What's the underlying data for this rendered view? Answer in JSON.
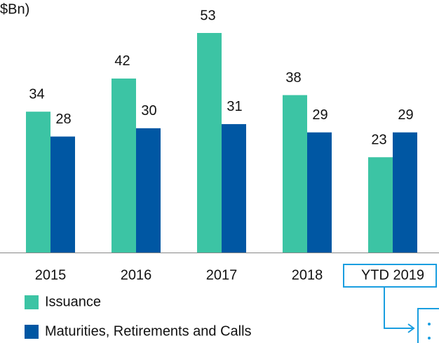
{
  "chart_data": {
    "type": "bar",
    "unit_label": "$Bn)",
    "categories": [
      "2015",
      "2016",
      "2017",
      "2018",
      "YTD 2019"
    ],
    "series": [
      {
        "name": "Issuance",
        "color": "#3cc4a4",
        "values": [
          34,
          42,
          53,
          38,
          23
        ]
      },
      {
        "name": "Maturities, Retirements and Calls",
        "color": "#0057a3",
        "values": [
          28,
          30,
          31,
          29,
          29
        ]
      }
    ]
  }
}
